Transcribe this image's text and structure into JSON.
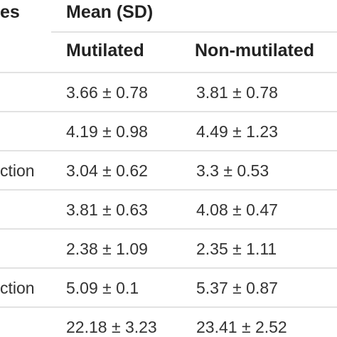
{
  "table": {
    "header": {
      "col1_partial": "es",
      "group": "Mean (SD)",
      "col_mutilated": "Mutilated",
      "col_non_mutilated": "Non-mutilated"
    },
    "rows": [
      {
        "label": "",
        "mutilated": "3.66 ± 0.78",
        "non_mutilated": "3.81 ± 0.78"
      },
      {
        "label": "",
        "mutilated": "4.19 ± 0.98",
        "non_mutilated": "4.49 ± 1.23"
      },
      {
        "label": "ction",
        "mutilated": "3.04 ± 0.62",
        "non_mutilated": "3.3 ± 0.53"
      },
      {
        "label": "",
        "mutilated": "3.81 ± 0.63",
        "non_mutilated": "4.08 ± 0.47"
      },
      {
        "label": "",
        "mutilated": "2.38 ± 1.09",
        "non_mutilated": "2.35 ± 1.11"
      },
      {
        "label": "ction",
        "mutilated": "5.09 ± 0.1",
        "non_mutilated": "5.37 ± 0.87"
      },
      {
        "label": "",
        "mutilated": "22.18 ± 3.23",
        "non_mutilated": "23.41 ± 2.52"
      }
    ]
  }
}
